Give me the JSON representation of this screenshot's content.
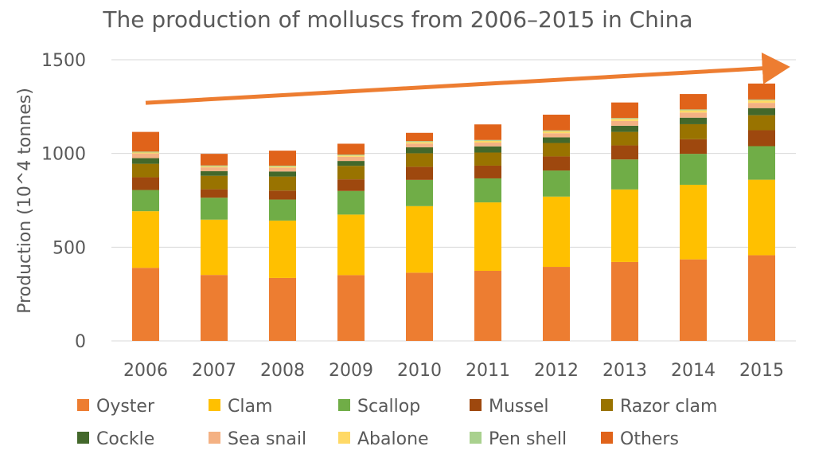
{
  "chart_data": {
    "type": "bar",
    "stacked": true,
    "title": "The production of molluscs from 2006–2015 in China",
    "xlabel": "",
    "ylabel": "Production (10^4 tonnes)",
    "ylim": [
      0,
      1500
    ],
    "yticks": [
      0,
      500,
      1000,
      1500
    ],
    "grid": true,
    "legend_position": "bottom",
    "categories": [
      "2006",
      "2007",
      "2008",
      "2009",
      "2010",
      "2011",
      "2012",
      "2013",
      "2014",
      "2015"
    ],
    "series": [
      {
        "name": "Oyster",
        "color": "#ED7D31",
        "values": [
          390,
          352,
          336,
          351,
          364,
          374,
          395,
          421,
          435,
          457
        ]
      },
      {
        "name": "Clam",
        "color": "#FFC000",
        "values": [
          302,
          295,
          306,
          323,
          355,
          365,
          375,
          387,
          398,
          403
        ]
      },
      {
        "name": "Scallop",
        "color": "#70AD47",
        "values": [
          113,
          117,
          112,
          126,
          140,
          128,
          139,
          160,
          165,
          179
        ]
      },
      {
        "name": "Mussel",
        "color": "#9E480E",
        "values": [
          68,
          45,
          48,
          62,
          70,
          68,
          75,
          75,
          78,
          85
        ]
      },
      {
        "name": "Razor clam",
        "color": "#997300",
        "values": [
          72,
          72,
          75,
          72,
          72,
          70,
          72,
          72,
          80,
          80
        ]
      },
      {
        "name": "Cockle",
        "color": "#43682B",
        "values": [
          30,
          25,
          27,
          26,
          32,
          33,
          30,
          33,
          35,
          38
        ]
      },
      {
        "name": "Sea snail",
        "color": "#F4B183",
        "values": [
          25,
          20,
          20,
          22,
          20,
          20,
          22,
          25,
          27,
          28
        ]
      },
      {
        "name": "Abalone",
        "color": "#FFD966",
        "values": [
          5,
          5,
          6,
          7,
          8,
          9,
          10,
          11,
          12,
          13
        ]
      },
      {
        "name": "Pen shell",
        "color": "#A9D18E",
        "values": [
          5,
          5,
          5,
          5,
          5,
          5,
          5,
          5,
          5,
          5
        ]
      },
      {
        "name": "Others",
        "color": "#E0631A",
        "values": [
          105,
          62,
          80,
          58,
          44,
          83,
          84,
          83,
          82,
          85
        ]
      }
    ],
    "annotations": [
      {
        "type": "trend-arrow",
        "from_year": "2006",
        "to_year": "2015",
        "from_value": 1270,
        "to_value": 1460,
        "color": "#ED7D31"
      }
    ]
  }
}
